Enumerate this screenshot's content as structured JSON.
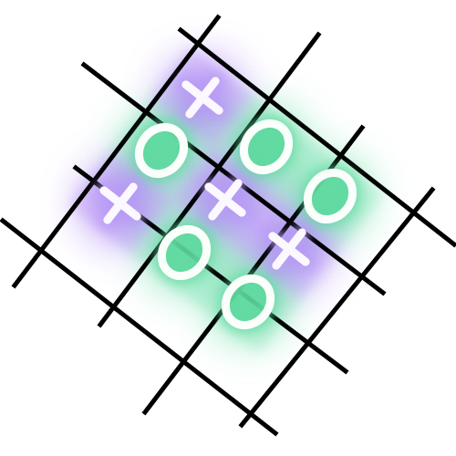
{
  "game": {
    "type": "tic-tac-toe",
    "board": [
      [
        "X",
        "O",
        "O"
      ],
      [
        "O",
        "X",
        "X"
      ],
      [
        "X",
        "O",
        "O"
      ]
    ],
    "colors": {
      "grid": "#000000",
      "x_glow": "#8a52f0",
      "o_glow": "#3fd48f",
      "x_fill": "#b89cf5",
      "o_fill": "#5fd9a0",
      "mark_stroke": "#ffffff"
    }
  }
}
